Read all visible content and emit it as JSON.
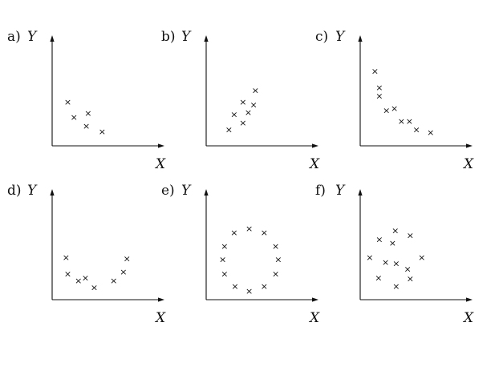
{
  "figure": {
    "marker_symbol": "×",
    "ink_color": "#111111",
    "background": "#ffffff"
  },
  "chart_data": [
    {
      "type": "scatter",
      "label": "a)",
      "xlabel": "X",
      "ylabel": "Y",
      "xlim": [
        0,
        10
      ],
      "ylim": [
        0,
        10
      ],
      "points": [
        [
          1.5,
          4.6
        ],
        [
          2.2,
          3.0
        ],
        [
          3.6,
          2.1
        ],
        [
          3.8,
          3.4
        ],
        [
          5.4,
          1.5
        ]
      ]
    },
    {
      "type": "scatter",
      "label": "b)",
      "xlabel": "X",
      "ylabel": "Y",
      "xlim": [
        0,
        10
      ],
      "ylim": [
        0,
        10
      ],
      "points": [
        [
          2.3,
          1.7
        ],
        [
          2.9,
          3.3
        ],
        [
          3.9,
          4.6
        ],
        [
          4.5,
          3.5
        ],
        [
          5.1,
          4.3
        ],
        [
          5.3,
          5.8
        ],
        [
          3.9,
          2.4
        ]
      ]
    },
    {
      "type": "scatter",
      "label": "c)",
      "xlabel": "X",
      "ylabel": "Y",
      "xlim": [
        0,
        10
      ],
      "ylim": [
        0,
        10
      ],
      "points": [
        [
          1.4,
          7.8
        ],
        [
          1.9,
          6.1
        ],
        [
          1.9,
          5.2
        ],
        [
          2.7,
          3.7
        ],
        [
          3.6,
          3.9
        ],
        [
          4.4,
          2.6
        ],
        [
          5.3,
          2.6
        ],
        [
          6.1,
          1.7
        ],
        [
          7.7,
          1.4
        ]
      ]
    },
    {
      "type": "scatter",
      "label": "d)",
      "xlabel": "X",
      "ylabel": "Y",
      "xlim": [
        0,
        10
      ],
      "ylim": [
        0,
        10
      ],
      "points": [
        [
          1.3,
          4.4
        ],
        [
          1.5,
          2.7
        ],
        [
          2.7,
          2.0
        ],
        [
          3.5,
          2.3
        ],
        [
          4.5,
          1.3
        ],
        [
          6.7,
          2.0
        ],
        [
          7.8,
          2.9
        ],
        [
          8.2,
          4.3
        ]
      ]
    },
    {
      "type": "scatter",
      "label": "e)",
      "xlabel": "X",
      "ylabel": "Y",
      "xlim": [
        0,
        10
      ],
      "ylim": [
        0,
        10
      ],
      "points": [
        [
          1.8,
          5.6
        ],
        [
          1.6,
          4.2
        ],
        [
          2.9,
          7.0
        ],
        [
          1.8,
          2.7
        ],
        [
          3.0,
          1.4
        ],
        [
          4.6,
          7.4
        ],
        [
          4.6,
          0.9
        ],
        [
          6.3,
          7.0
        ],
        [
          6.3,
          1.4
        ],
        [
          7.6,
          5.6
        ],
        [
          7.9,
          4.2
        ],
        [
          7.6,
          2.7
        ]
      ]
    },
    {
      "type": "scatter",
      "label": "f)",
      "xlabel": "X",
      "ylabel": "Y",
      "xlim": [
        0,
        10
      ],
      "ylim": [
        0,
        10
      ],
      "points": [
        [
          0.8,
          4.4
        ],
        [
          1.9,
          6.3
        ],
        [
          1.8,
          2.3
        ],
        [
          2.6,
          3.9
        ],
        [
          3.4,
          5.9
        ],
        [
          3.7,
          7.2
        ],
        [
          3.8,
          3.8
        ],
        [
          3.8,
          1.4
        ],
        [
          5.1,
          3.2
        ],
        [
          5.4,
          6.7
        ],
        [
          5.4,
          2.2
        ],
        [
          6.7,
          4.4
        ]
      ]
    }
  ]
}
